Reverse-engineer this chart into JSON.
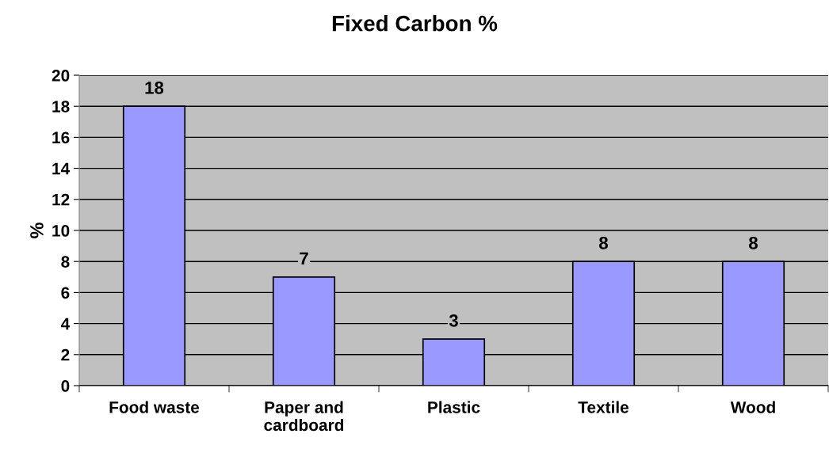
{
  "chart_data": {
    "type": "bar",
    "title": "Fixed Carbon %",
    "ylabel": "%",
    "categories": [
      "Food waste",
      "Paper and\ncardboard",
      "Plastic",
      "Textile",
      "Wood"
    ],
    "values": [
      18,
      7,
      3,
      8,
      8
    ],
    "color": "#9999ff",
    "ylim": [
      0,
      20
    ],
    "yticks": [
      0,
      2,
      4,
      6,
      8,
      10,
      12,
      14,
      16,
      18,
      20
    ],
    "grid": "y",
    "data_labels": true
  }
}
